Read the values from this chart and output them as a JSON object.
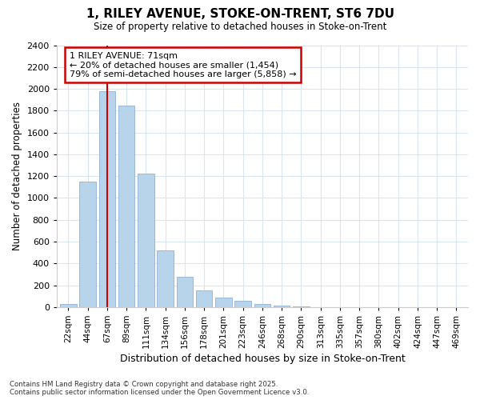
{
  "title": "1, RILEY AVENUE, STOKE-ON-TRENT, ST6 7DU",
  "subtitle": "Size of property relative to detached houses in Stoke-on-Trent",
  "xlabel": "Distribution of detached houses by size in Stoke-on-Trent",
  "ylabel": "Number of detached properties",
  "categories": [
    "22sqm",
    "44sqm",
    "67sqm",
    "89sqm",
    "111sqm",
    "134sqm",
    "156sqm",
    "178sqm",
    "201sqm",
    "223sqm",
    "246sqm",
    "268sqm",
    "290sqm",
    "313sqm",
    "335sqm",
    "357sqm",
    "380sqm",
    "402sqm",
    "424sqm",
    "447sqm",
    "469sqm"
  ],
  "values": [
    25,
    1150,
    1975,
    1850,
    1225,
    520,
    275,
    150,
    90,
    55,
    30,
    15,
    5,
    0,
    0,
    0,
    0,
    0,
    0,
    0,
    0
  ],
  "bar_color": "#b8d4ea",
  "bar_edge_color": "#9ab8d8",
  "vline_color": "#cc0000",
  "vline_x": 2,
  "annotation_title": "1 RILEY AVENUE: 71sqm",
  "annotation_line1": "← 20% of detached houses are smaller (1,454)",
  "annotation_line2": "79% of semi-detached houses are larger (5,858) →",
  "annotation_box_color": "#ffffff",
  "annotation_box_edge": "#cc0000",
  "ylim": [
    0,
    2400
  ],
  "yticks": [
    0,
    200,
    400,
    600,
    800,
    1000,
    1200,
    1400,
    1600,
    1800,
    2000,
    2200,
    2400
  ],
  "background_color": "#ffffff",
  "grid_color": "#d8e4f0",
  "footer_line1": "Contains HM Land Registry data © Crown copyright and database right 2025.",
  "footer_line2": "Contains public sector information licensed under the Open Government Licence v3.0."
}
